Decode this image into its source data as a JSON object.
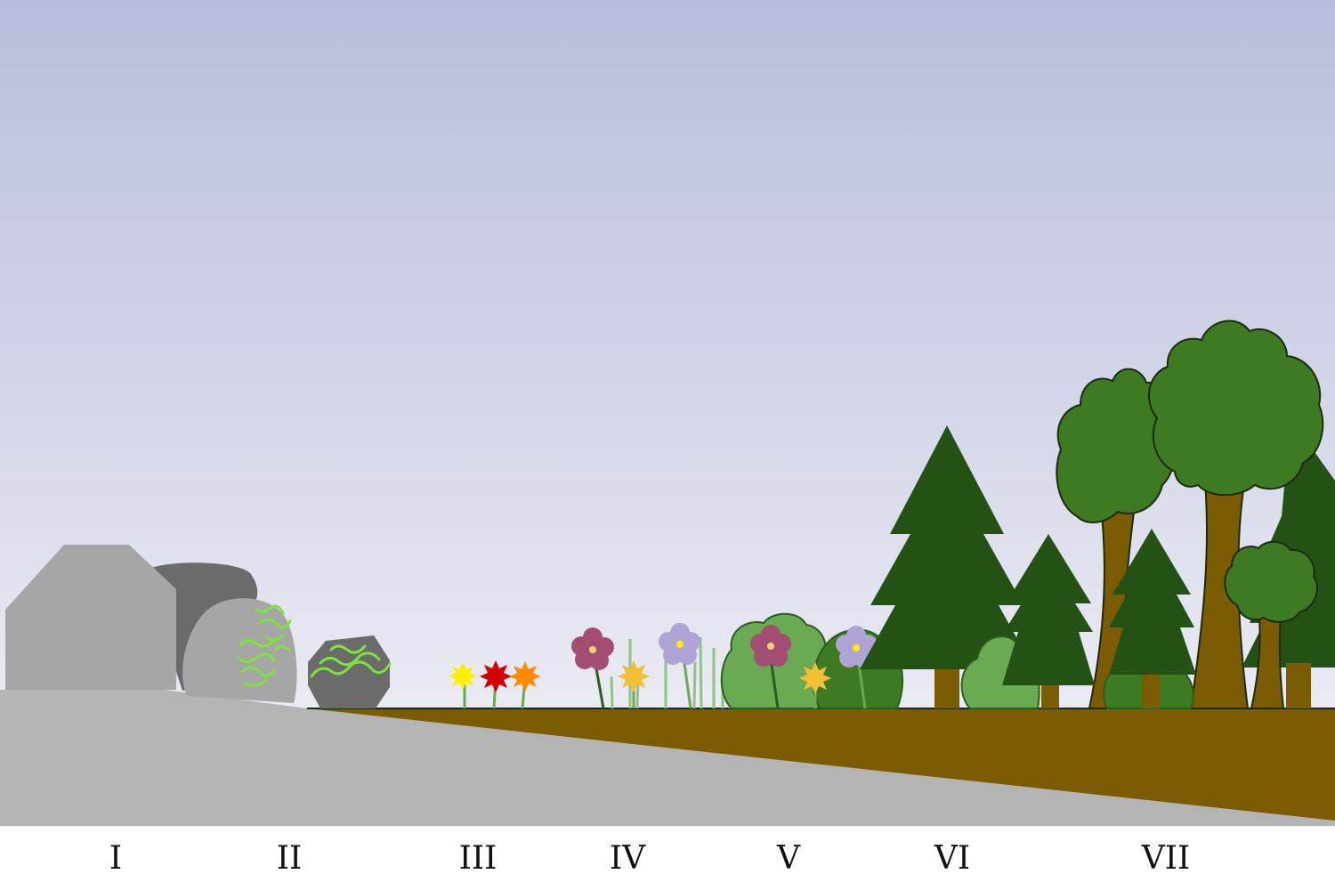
{
  "stages": [
    {
      "id": "I",
      "label": "I",
      "description": "bare rock"
    },
    {
      "id": "II",
      "label": "II",
      "description": "lichens and mosses on rock"
    },
    {
      "id": "III",
      "label": "III",
      "description": "small annual plants"
    },
    {
      "id": "IV",
      "label": "IV",
      "description": "grasses and perennial herbs"
    },
    {
      "id": "V",
      "label": "V",
      "description": "shrubs"
    },
    {
      "id": "VI",
      "label": "VI",
      "description": "shade-intolerant trees"
    },
    {
      "id": "VII",
      "label": "VII",
      "description": "mature forest"
    }
  ],
  "colors": {
    "sky_top": "#b8bddb",
    "sky_bottom": "#f2f2f7",
    "bedrock": "#b4b4b4",
    "soil": "#7b5c03",
    "rock_light": "#a6a6a6",
    "rock_dark": "#6b6b6b",
    "lichen": "#7de33a",
    "shrub": "#6aaa52",
    "conifer": "#245215",
    "deciduous": "#3d7a22",
    "trunk": "#7b5c03"
  }
}
